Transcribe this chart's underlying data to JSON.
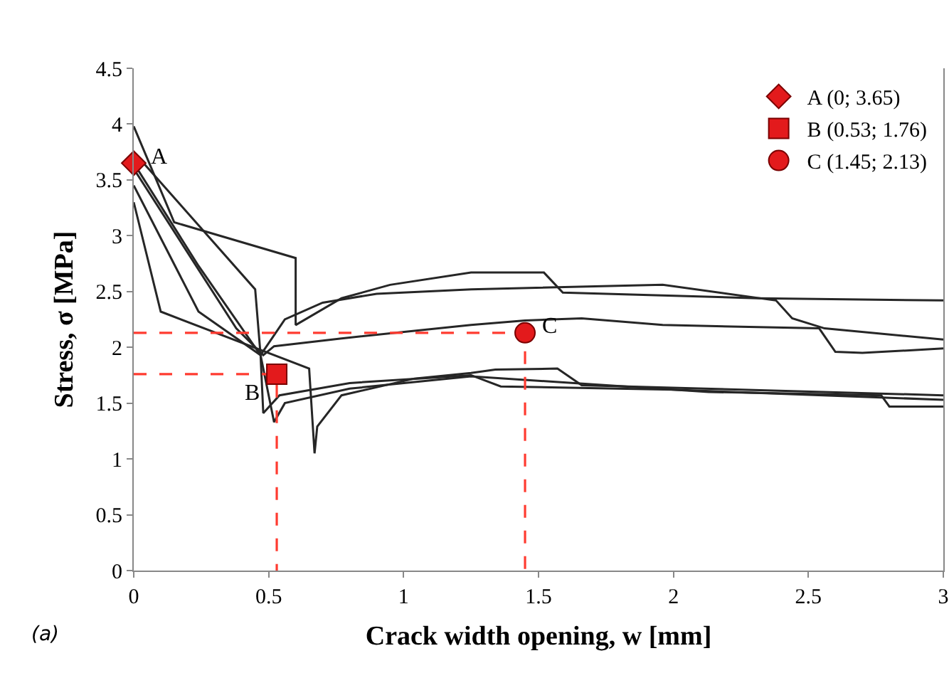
{
  "chart_data": {
    "type": "line",
    "xlabel": "Crack width opening, w [mm]",
    "ylabel": "Stress, σ [MPa]",
    "xlim": [
      0,
      3
    ],
    "xticks": [
      0,
      0.5,
      1,
      1.5,
      2,
      2.5,
      3
    ],
    "ylim": [
      0,
      4.5
    ],
    "yticks": [
      0,
      0.5,
      1,
      1.5,
      2,
      2.5,
      3,
      3.5,
      4,
      4.5
    ],
    "grid": false,
    "legend": "top right",
    "marker": "none",
    "line_style": "solid",
    "series": [
      {
        "color": "#262626",
        "x": [
          0,
          0.15,
          0.6,
          0.6,
          0.77,
          0.95,
          1.25,
          1.52,
          1.59,
          2.31,
          3
        ],
        "values": [
          3.98,
          3.12,
          2.8,
          2.2,
          2.44,
          2.56,
          2.67,
          2.67,
          2.49,
          2.44,
          2.42
        ]
      },
      {
        "color": "#262626",
        "x": [
          0,
          0.45,
          0.47,
          0.56,
          0.7,
          0.9,
          1.25,
          1.96,
          2.38,
          2.44,
          2.56,
          3
        ],
        "values": [
          3.75,
          2.52,
          1.93,
          2.25,
          2.4,
          2.48,
          2.52,
          2.56,
          2.42,
          2.26,
          2.17,
          2.07
        ]
      },
      {
        "color": "#262626",
        "x": [
          0,
          0.1,
          0.65,
          0.67,
          0.68,
          0.77,
          1.04,
          1.25,
          1.34,
          1.57,
          1.66,
          3
        ],
        "values": [
          3.3,
          2.32,
          1.81,
          1.05,
          1.29,
          1.57,
          1.72,
          1.77,
          1.8,
          1.81,
          1.66,
          1.57
        ]
      },
      {
        "color": "#262626",
        "x": [
          0,
          0.24,
          0.47,
          0.48,
          0.54,
          0.8,
          1.25,
          1.36,
          2,
          3
        ],
        "values": [
          3.65,
          2.73,
          1.93,
          1.41,
          1.57,
          1.68,
          1.75,
          1.65,
          1.62,
          1.53
        ]
      },
      {
        "color": "#262626",
        "x": [
          0,
          0.24,
          0.47,
          0.52,
          0.56,
          0.8,
          1.25,
          2.13,
          2.77,
          2.8,
          3
        ],
        "values": [
          3.45,
          2.32,
          1.93,
          1.33,
          1.5,
          1.63,
          1.74,
          1.6,
          1.57,
          1.47,
          1.47
        ]
      },
      {
        "color": "#262626",
        "x": [
          0,
          0.38,
          0.48,
          0.52,
          0.77,
          1.25,
          1.45,
          1.66,
          1.96,
          2.54,
          2.6,
          2.7,
          3
        ],
        "values": [
          3.6,
          2.17,
          1.93,
          2.01,
          2.08,
          2.2,
          2.24,
          2.26,
          2.2,
          2.17,
          1.96,
          1.95,
          1.99
        ]
      },
      {
        "color": "#ff3b30",
        "line_style": "dashed",
        "x": [
          0,
          0.53,
          0.53
        ],
        "values": [
          1.76,
          1.76,
          0
        ]
      },
      {
        "color": "#ff3b30",
        "line_style": "dashed",
        "x": [
          0,
          1.45,
          1.45
        ],
        "values": [
          2.13,
          2.13,
          0
        ]
      },
      {
        "type": "scatter",
        "name": "A (0; 3.65)",
        "color": "#e31a1c",
        "marker": "diamond",
        "x": [
          0
        ],
        "values": [
          3.65
        ]
      },
      {
        "type": "scatter",
        "name": "B (0.53; 1.76)",
        "color": "#e31a1c",
        "marker": "square",
        "x": [
          0.53
        ],
        "values": [
          1.76
        ]
      },
      {
        "type": "scatter",
        "name": "C (1.45; 2.13)",
        "color": "#e31a1c",
        "marker": "circle",
        "x": [
          1.45
        ],
        "values": [
          2.13
        ]
      }
    ],
    "annotations": [
      {
        "text": "A",
        "x": 0,
        "y": 3.65
      },
      {
        "text": "B",
        "x": 0.53,
        "y": 1.76
      },
      {
        "text": "C",
        "x": 1.45,
        "y": 2.13
      },
      "(a)"
    ]
  }
}
